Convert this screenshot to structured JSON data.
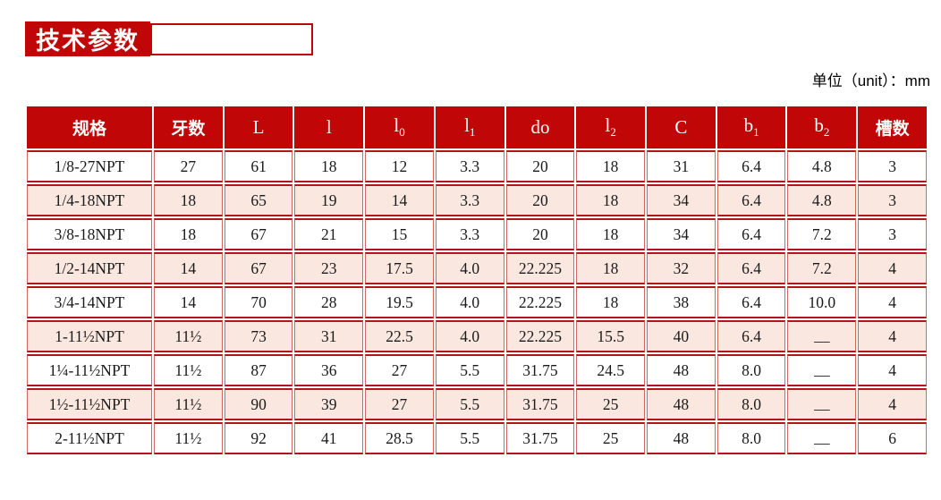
{
  "page": {
    "title": "技术参数",
    "unit_note": "单位（unit）：mm"
  },
  "colors": {
    "brand_red": "#c00606",
    "row_alt_pink": "#fae8e0",
    "border_dark_red": "#b2161b",
    "border_light_red": "#d0685f"
  },
  "table": {
    "na_symbol": "—",
    "columns": [
      {
        "key": "spec",
        "label": "规格",
        "sub": ""
      },
      {
        "key": "teeth",
        "label": "牙数",
        "sub": ""
      },
      {
        "key": "L",
        "label": "L",
        "sub": ""
      },
      {
        "key": "l",
        "label": "l",
        "sub": ""
      },
      {
        "key": "l0",
        "label": "l",
        "sub": "0"
      },
      {
        "key": "l1",
        "label": "l",
        "sub": "1"
      },
      {
        "key": "do",
        "label": "do",
        "sub": ""
      },
      {
        "key": "l2",
        "label": "l",
        "sub": "2"
      },
      {
        "key": "C",
        "label": "C",
        "sub": ""
      },
      {
        "key": "b1",
        "label": "b",
        "sub": "1"
      },
      {
        "key": "b2",
        "label": "b",
        "sub": "2"
      },
      {
        "key": "slots",
        "label": "槽数",
        "sub": ""
      }
    ],
    "rows": [
      [
        "1/8-27NPT",
        "27",
        "61",
        "18",
        "12",
        "3.3",
        "20",
        "18",
        "31",
        "6.4",
        "4.8",
        "3"
      ],
      [
        "1/4-18NPT",
        "18",
        "65",
        "19",
        "14",
        "3.3",
        "20",
        "18",
        "34",
        "6.4",
        "4.8",
        "3"
      ],
      [
        "3/8-18NPT",
        "18",
        "67",
        "21",
        "15",
        "3.3",
        "20",
        "18",
        "34",
        "6.4",
        "7.2",
        "3"
      ],
      [
        "1/2-14NPT",
        "14",
        "67",
        "23",
        "17.5",
        "4.0",
        "22.225",
        "18",
        "32",
        "6.4",
        "7.2",
        "4"
      ],
      [
        "3/4-14NPT",
        "14",
        "70",
        "28",
        "19.5",
        "4.0",
        "22.225",
        "18",
        "38",
        "6.4",
        "10.0",
        "4"
      ],
      [
        "1-11½NPT",
        "11½",
        "73",
        "31",
        "22.5",
        "4.0",
        "22.225",
        "15.5",
        "40",
        "6.4",
        "—",
        "4"
      ],
      [
        "1¼-11½NPT",
        "11½",
        "87",
        "36",
        "27",
        "5.5",
        "31.75",
        "24.5",
        "48",
        "8.0",
        "—",
        "4"
      ],
      [
        "1½-11½NPT",
        "11½",
        "90",
        "39",
        "27",
        "5.5",
        "31.75",
        "25",
        "48",
        "8.0",
        "—",
        "4"
      ],
      [
        "2-11½NPT",
        "11½",
        "92",
        "41",
        "28.5",
        "5.5",
        "31.75",
        "25",
        "48",
        "8.0",
        "—",
        "6"
      ]
    ]
  }
}
